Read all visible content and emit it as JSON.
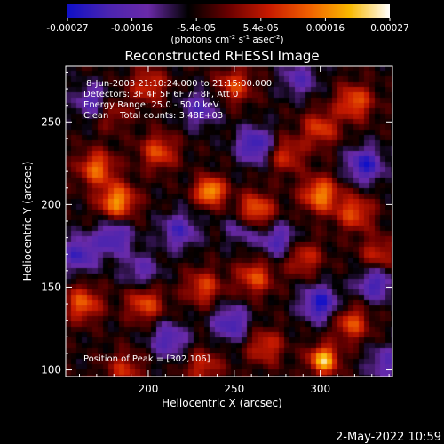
{
  "chart_data": {
    "type": "heatmap",
    "title": "Reconstructed RHESSI Image",
    "xlabel": "Heliocentric X (arcsec)",
    "ylabel": "Heliocentric Y (arcsec)",
    "xlim": [
      152,
      342
    ],
    "ylim": [
      96,
      284
    ],
    "x_ticks": [
      200,
      250,
      300
    ],
    "y_ticks": [
      100,
      150,
      200,
      250
    ],
    "colorbar": {
      "ticks": [
        "-0.00027",
        "-0.00016",
        "-5.4e-05",
        "5.4e-05",
        "0.00016",
        "0.00027"
      ],
      "unit_prefix": "(photons cm",
      "unit_exp1": "-2",
      "unit_mid": " s",
      "unit_exp2": "-1",
      "unit_mid2": " asec",
      "unit_exp3": "-2",
      "unit_suffix": ")",
      "range": [
        -0.00027,
        0.00027
      ],
      "colors": [
        "#1010c8",
        "#4a24b0",
        "#6a2aa8",
        "#000000",
        "#6a0000",
        "#c81a00",
        "#f06000",
        "#f8b800",
        "#ffffff"
      ]
    },
    "info": [
      "8-Jun-2003 21:10:24.000 to 21:15:00.000",
      "Detectors: 3F 4F 5F 6F 7F 8F, Att 0",
      "Energy Range: 25.0 - 50.0 keV",
      "Clean    Total counts: 3.48E+03"
    ],
    "peak_label": "Position of Peak = [302,106]",
    "peak": [
      302,
      106
    ],
    "blobs": [
      {
        "x": 302,
        "y": 106,
        "v": 1.0
      },
      {
        "x": 182,
        "y": 202,
        "v": 0.85
      },
      {
        "x": 236,
        "y": 208,
        "v": 0.95
      },
      {
        "x": 262,
        "y": 196,
        "v": 0.75
      },
      {
        "x": 300,
        "y": 206,
        "v": 0.8
      },
      {
        "x": 320,
        "y": 195,
        "v": 0.6
      },
      {
        "x": 206,
        "y": 232,
        "v": 0.6
      },
      {
        "x": 170,
        "y": 222,
        "v": 0.7
      },
      {
        "x": 162,
        "y": 140,
        "v": 0.65
      },
      {
        "x": 198,
        "y": 140,
        "v": 0.6
      },
      {
        "x": 232,
        "y": 150,
        "v": 0.55
      },
      {
        "x": 262,
        "y": 156,
        "v": 0.6
      },
      {
        "x": 290,
        "y": 168,
        "v": 0.5
      },
      {
        "x": 318,
        "y": 128,
        "v": 0.6
      },
      {
        "x": 300,
        "y": 246,
        "v": 0.55
      },
      {
        "x": 320,
        "y": 262,
        "v": 0.65
      },
      {
        "x": 200,
        "y": 272,
        "v": 0.5
      },
      {
        "x": 250,
        "y": 272,
        "v": 0.55
      },
      {
        "x": 268,
        "y": 114,
        "v": 0.5
      },
      {
        "x": 232,
        "y": 102,
        "v": 0.45
      },
      {
        "x": 334,
        "y": 170,
        "v": 0.45
      },
      {
        "x": 178,
        "y": 256,
        "v": 0.4
      },
      {
        "x": 280,
        "y": 230,
        "v": 0.5
      },
      {
        "x": 186,
        "y": 100,
        "v": 0.45
      },
      {
        "x": 218,
        "y": 184,
        "v": -0.55
      },
      {
        "x": 180,
        "y": 180,
        "v": -0.6
      },
      {
        "x": 262,
        "y": 236,
        "v": -0.7
      },
      {
        "x": 326,
        "y": 224,
        "v": -0.7
      },
      {
        "x": 300,
        "y": 140,
        "v": -0.75
      },
      {
        "x": 248,
        "y": 128,
        "v": -0.6
      },
      {
        "x": 212,
        "y": 118,
        "v": -0.55
      },
      {
        "x": 332,
        "y": 152,
        "v": -0.6
      },
      {
        "x": 168,
        "y": 262,
        "v": -0.55
      },
      {
        "x": 230,
        "y": 258,
        "v": -0.5
      },
      {
        "x": 276,
        "y": 178,
        "v": -0.55
      },
      {
        "x": 160,
        "y": 170,
        "v": -0.6
      },
      {
        "x": 288,
        "y": 276,
        "v": -0.45
      },
      {
        "x": 338,
        "y": 104,
        "v": -0.45
      },
      {
        "x": 255,
        "y": 186,
        "v": -0.4
      },
      {
        "x": 196,
        "y": 160,
        "v": -0.4
      }
    ]
  },
  "timestamp": "2-May-2022 10:59"
}
